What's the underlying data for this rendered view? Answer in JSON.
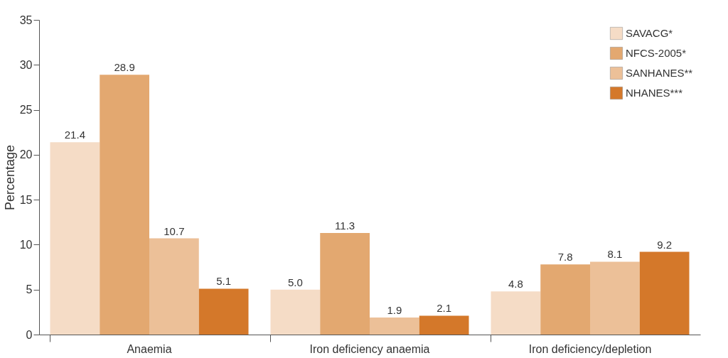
{
  "chart_data": {
    "type": "bar",
    "ylabel": "Percentage",
    "categories": [
      "Anaemia",
      "Iron deficiency anaemia",
      "Iron deficiency/depletion"
    ],
    "series": [
      {
        "name": "SAVACG*",
        "color": "#f5dcc6",
        "values": [
          21.4,
          5.0,
          4.8
        ],
        "value_labels": [
          "21.4",
          "5.0",
          "4.8"
        ]
      },
      {
        "name": "NFCS-2005*",
        "color": "#e3a870",
        "values": [
          28.9,
          11.3,
          7.8
        ],
        "value_labels": [
          "28.9",
          "11.3",
          "7.8"
        ]
      },
      {
        "name": "SANHANES**",
        "color": "#ecc098",
        "values": [
          10.7,
          1.9,
          8.1
        ],
        "value_labels": [
          "10.7",
          "1.9",
          "8.1"
        ]
      },
      {
        "name": "NHANES***",
        "color": "#d4782a",
        "values": [
          5.1,
          2.1,
          9.2
        ],
        "value_labels": [
          "5.1",
          "2.1",
          "9.2"
        ]
      }
    ],
    "ylim": [
      0,
      35
    ],
    "yticks": [
      0,
      5,
      10,
      15,
      20,
      25,
      30,
      35
    ],
    "grid": false,
    "legend": "top right"
  }
}
